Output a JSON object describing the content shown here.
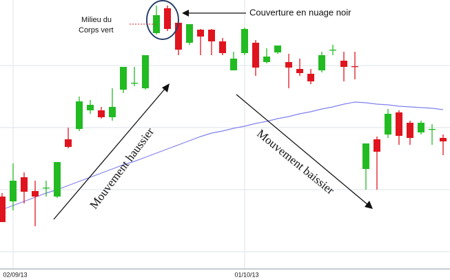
{
  "chart_data": {
    "type": "candlestick",
    "categories": [
      null,
      "02/09/13",
      null,
      null,
      null,
      null,
      null,
      null,
      null,
      null,
      null,
      null,
      null,
      null,
      null,
      null,
      null,
      null,
      null,
      null,
      null,
      null,
      "01/10/13",
      null,
      null,
      null,
      null,
      null,
      null,
      null,
      null,
      null,
      null,
      null,
      null,
      null,
      null,
      null,
      null,
      null,
      null
    ],
    "open": [
      115,
      108,
      143,
      123,
      128,
      115,
      198,
      213,
      240,
      240,
      230,
      270,
      280,
      272,
      352,
      388,
      367,
      338,
      357,
      357,
      340,
      298,
      323,
      338,
      310,
      324,
      310,
      300,
      293,
      298,
      328,
      312,
      304,
      155,
      198,
      205,
      237,
      222,
      208,
      213,
      200
    ],
    "high": [
      120,
      163,
      150,
      138,
      138,
      165,
      215,
      260,
      255,
      245,
      272,
      303,
      303,
      320,
      392,
      392,
      367,
      365,
      358,
      358,
      345,
      325,
      360,
      342,
      330,
      334,
      322,
      315,
      300,
      325,
      335,
      325,
      325,
      192,
      202,
      242,
      240,
      225,
      225,
      220,
      205
    ],
    "low": [
      78,
      95,
      105,
      72,
      115,
      113,
      185,
      210,
      235,
      228,
      225,
      265,
      275,
      270,
      350,
      355,
      320,
      335,
      320,
      320,
      320,
      298,
      320,
      290,
      308,
      322,
      272,
      290,
      278,
      295,
      320,
      282,
      285,
      125,
      125,
      200,
      190,
      190,
      205,
      190,
      175
    ],
    "close": [
      78,
      138,
      122,
      115,
      128,
      165,
      187,
      253,
      248,
      230,
      245,
      303,
      280,
      320,
      378,
      358,
      328,
      365,
      347,
      340,
      323,
      315,
      358,
      302,
      318,
      334,
      302,
      294,
      282,
      320,
      328,
      303,
      303,
      192,
      180,
      235,
      203,
      200,
      222,
      213,
      195
    ],
    "up_color": "#22bb22",
    "down_color": "#e0141e",
    "moving_average": {
      "color": "#8080ee",
      "values": [
        96,
        102,
        108,
        114,
        120,
        125,
        131,
        137,
        143,
        149,
        155,
        161,
        166,
        172,
        178,
        184,
        190,
        196,
        202,
        207,
        210,
        214,
        217,
        221,
        224,
        228,
        231,
        235,
        238,
        242,
        245,
        249,
        252,
        251,
        249,
        248,
        246,
        245,
        244,
        243,
        241
      ]
    },
    "ylim": [
      10,
      400
    ],
    "yticks": [
      35,
      125,
      215,
      305
    ],
    "grid": true,
    "annotations": {
      "milieu": [
        "Milieu du",
        "Corps vert"
      ],
      "couverture": "Couverture en nuage noir",
      "haussier": "Mouvement  haussier",
      "baissier": "Mouvement baissier"
    }
  }
}
